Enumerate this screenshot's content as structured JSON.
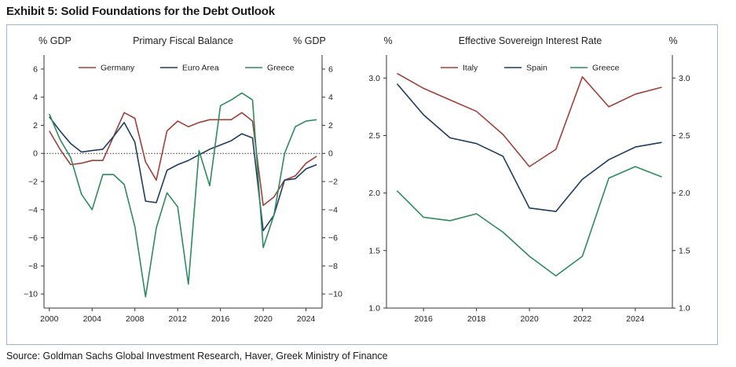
{
  "exhibit_title": "Exhibit 5: Solid Foundations for the Debt Outlook",
  "source": "Source: Goldman Sachs Global Investment Research, Haver, Greek Ministry of Finance",
  "chart_data": [
    {
      "type": "line",
      "title": "Primary Fiscal Balance",
      "ylabel_left": "% GDP",
      "ylabel_right": "% GDP",
      "xlabel": "",
      "xlim": [
        1999.5,
        2025.5
      ],
      "ylim": [
        -11,
        7
      ],
      "x_ticks": [
        2000,
        2004,
        2008,
        2012,
        2016,
        2020,
        2024
      ],
      "y_ticks": [
        6,
        4,
        2,
        0,
        -2,
        -4,
        -6,
        -8,
        -10
      ],
      "zero_line": "dotted",
      "legend": "top",
      "x": [
        2000,
        2001,
        2002,
        2003,
        2004,
        2005,
        2006,
        2007,
        2008,
        2009,
        2010,
        2011,
        2012,
        2013,
        2014,
        2015,
        2016,
        2017,
        2018,
        2019,
        2020,
        2021,
        2022,
        2023,
        2024,
        2025
      ],
      "series": [
        {
          "name": "Germany",
          "color": "#a0403a",
          "values": [
            1.6,
            0.3,
            -0.8,
            -0.7,
            -0.5,
            -0.5,
            1.2,
            2.9,
            2.5,
            -0.6,
            -1.9,
            1.6,
            2.3,
            1.9,
            2.2,
            2.4,
            2.4,
            2.4,
            2.9,
            2.3,
            -3.7,
            -3.1,
            -1.9,
            -1.6,
            -0.7,
            -0.2
          ]
        },
        {
          "name": "Euro Area",
          "color": "#1f3d5e",
          "values": [
            2.6,
            1.6,
            0.7,
            0.1,
            0.2,
            0.3,
            1.2,
            2.2,
            0.8,
            -3.4,
            -3.5,
            -1.2,
            -0.8,
            -0.5,
            -0.1,
            0.3,
            0.6,
            0.9,
            1.4,
            1.1,
            -5.5,
            -4.4,
            -1.9,
            -1.8,
            -1.1,
            -0.8
          ]
        },
        {
          "name": "Greece",
          "color": "#2e8b5f",
          "values": [
            2.8,
            1.0,
            -0.3,
            -2.9,
            -4.0,
            -1.5,
            -1.5,
            -2.2,
            -5.2,
            -10.2,
            -5.3,
            -2.8,
            -3.8,
            -9.3,
            0.2,
            -2.3,
            3.4,
            3.8,
            4.3,
            3.8,
            -6.7,
            -4.4,
            0.0,
            1.9,
            2.3,
            2.4
          ]
        }
      ]
    },
    {
      "type": "line",
      "title": "Effective Sovereign Interest Rate",
      "ylabel_left": "%",
      "ylabel_right": "%",
      "xlabel": "",
      "xlim": [
        2014.6,
        2025.4
      ],
      "ylim": [
        1.0,
        3.2
      ],
      "x_ticks": [
        2016,
        2018,
        2020,
        2022,
        2024
      ],
      "y_ticks": [
        3.0,
        2.5,
        2.0,
        1.5,
        1.0
      ],
      "legend": "top",
      "x": [
        2015,
        2016,
        2017,
        2018,
        2019,
        2020,
        2021,
        2022,
        2023,
        2024,
        2025
      ],
      "series": [
        {
          "name": "Italy",
          "color": "#a0403a",
          "values": [
            3.04,
            2.91,
            2.81,
            2.71,
            2.51,
            2.23,
            2.38,
            3.01,
            2.75,
            2.86,
            2.92
          ]
        },
        {
          "name": "Spain",
          "color": "#1f3d5e",
          "values": [
            2.95,
            2.68,
            2.48,
            2.43,
            2.32,
            1.87,
            1.84,
            2.12,
            2.29,
            2.4,
            2.44
          ]
        },
        {
          "name": "Greece",
          "color": "#2e8b5f",
          "values": [
            2.02,
            1.79,
            1.76,
            1.82,
            1.66,
            1.45,
            1.28,
            1.45,
            2.13,
            2.23,
            2.14
          ]
        }
      ]
    }
  ]
}
